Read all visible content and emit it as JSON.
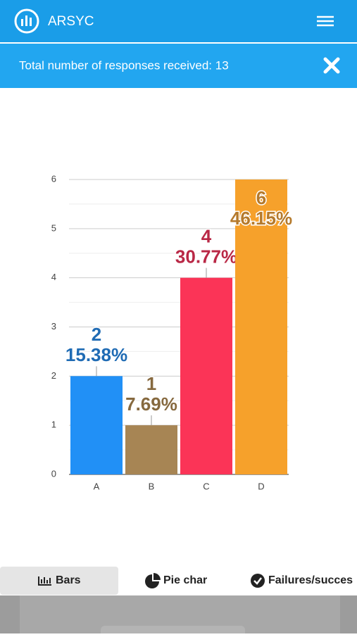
{
  "header": {
    "title": "ARSYC"
  },
  "banner": {
    "text": "Total number of responses received: 13"
  },
  "chart_data": {
    "type": "bar",
    "categories": [
      "A",
      "B",
      "C",
      "D"
    ],
    "values": [
      2,
      1,
      4,
      6
    ],
    "percentage_labels": [
      "15.38%",
      "7.69%",
      "30.77%",
      "46.15%"
    ],
    "colors": [
      "#2190f6",
      "#a78554",
      "#fb3457",
      "#f6a12b"
    ],
    "label_colors": [
      "#1f6bb4",
      "#86693f",
      "#b92846",
      "#b57a2c"
    ],
    "ylim": [
      0,
      6
    ],
    "yticks": [
      0,
      1,
      2,
      3,
      4,
      5,
      6
    ],
    "grid": true
  },
  "tabs": [
    "Bars",
    "Pie char",
    "Failures/succes"
  ]
}
